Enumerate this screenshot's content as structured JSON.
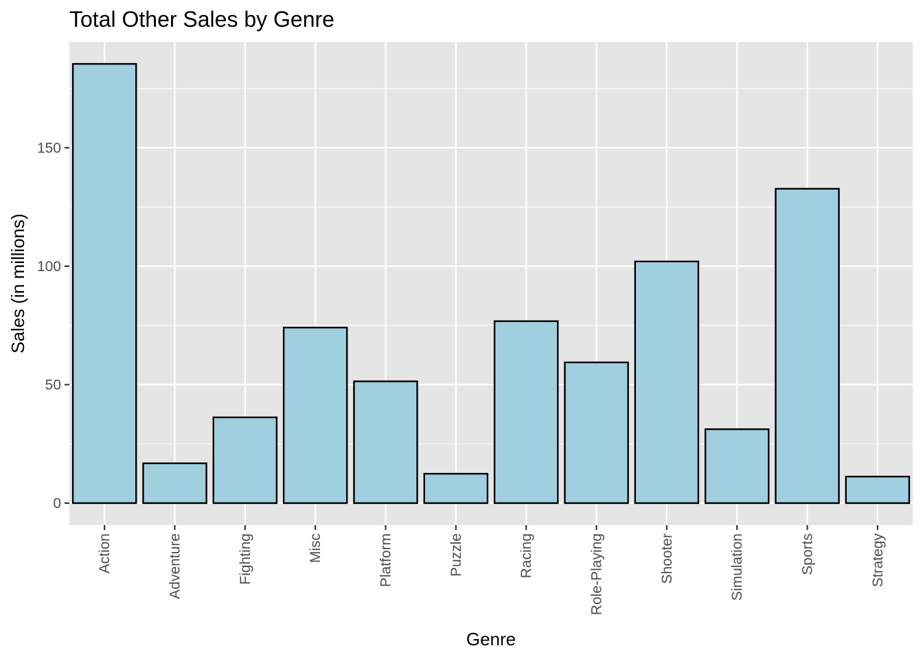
{
  "chart_data": {
    "type": "bar",
    "title": "Total Other Sales by Genre",
    "xlabel": "Genre",
    "ylabel": "Sales (in millions)",
    "categories": [
      "Action",
      "Adventure",
      "Fighting",
      "Misc",
      "Platform",
      "Puzzle",
      "Racing",
      "Role-Playing",
      "Shooter",
      "Simulation",
      "Sports",
      "Strategy"
    ],
    "values": [
      185.4,
      16.8,
      36.2,
      74.1,
      51.4,
      12.4,
      76.8,
      59.4,
      102.0,
      31.2,
      132.7,
      11.2
    ],
    "ylim": [
      -9.3,
      194.7
    ],
    "yticks": [
      0,
      50,
      100,
      150
    ],
    "ytick_labels": [
      "0",
      "50",
      "100",
      "150"
    ],
    "grid": true,
    "legend": "none",
    "colors": {
      "bar_fill": "#a0cfe0",
      "bar_stroke": "#000000",
      "panel_background": "#e5e5e5",
      "grid_line": "#ffffff"
    }
  }
}
